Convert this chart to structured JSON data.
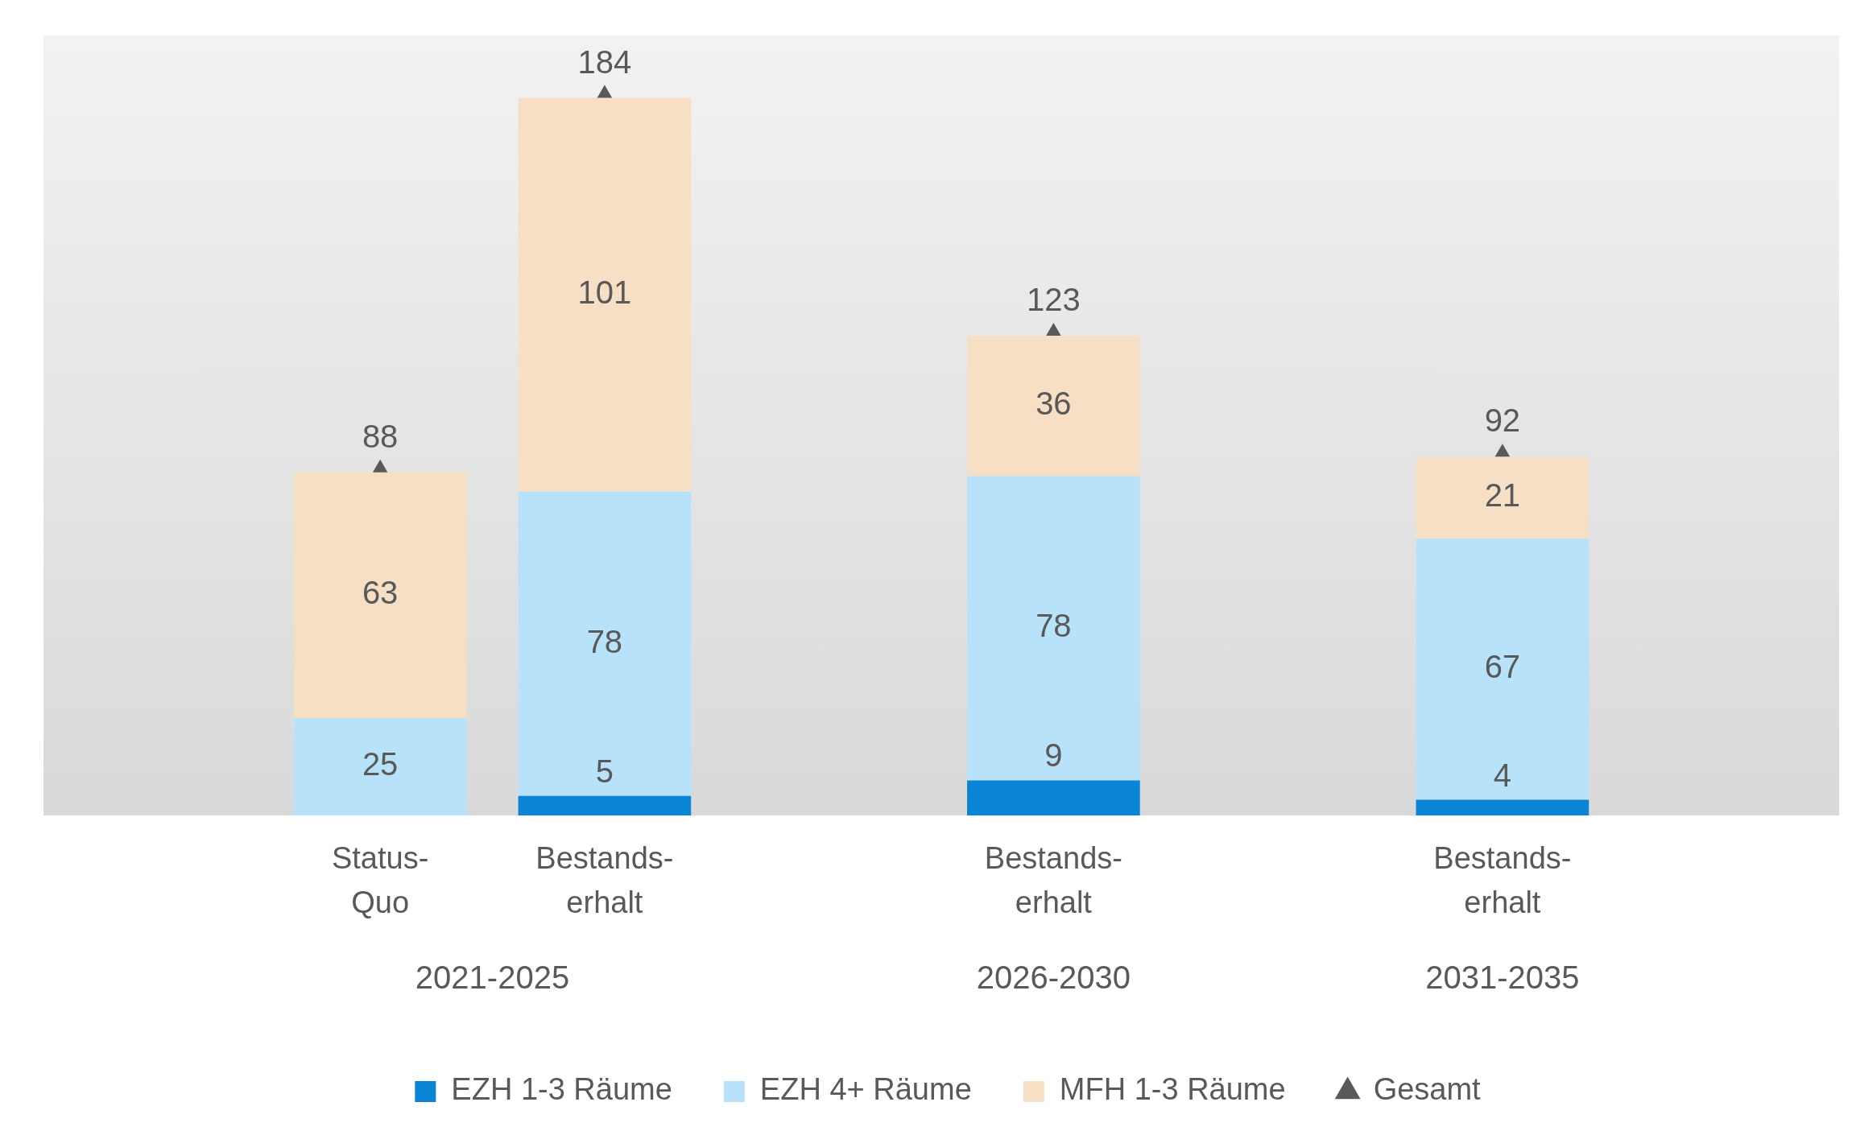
{
  "chart_data": {
    "type": "bar",
    "stacked": true,
    "data_labels": true,
    "legend": "bottom",
    "grid": false,
    "categories": [
      null,
      "Status-Quo",
      "Bestands-erhalt",
      null,
      "Bestands-erhalt",
      null,
      "Bestands-erhalt",
      null
    ],
    "series": [
      {
        "name": "EZH 1-3 Räume",
        "color": "#0a84d4",
        "values": [
          null,
          null,
          5,
          null,
          9,
          null,
          4,
          null
        ]
      },
      {
        "name": "EZH 4+ Räume",
        "color": "#b8e2fa",
        "values": [
          null,
          25,
          78,
          null,
          78,
          null,
          67,
          null
        ]
      },
      {
        "name": "MFH 1-3 Räume",
        "color": "#f7dfc5",
        "values": [
          null,
          63,
          101,
          null,
          36,
          null,
          21,
          null
        ]
      },
      {
        "name": "Gesamt",
        "type": "scatter",
        "marker": "triangle",
        "color": "#595959",
        "values": [
          null,
          88,
          184,
          null,
          123,
          null,
          92,
          null
        ]
      }
    ],
    "annotations": [
      "2021-2025",
      "2026-2030",
      "2031-2035"
    ]
  }
}
